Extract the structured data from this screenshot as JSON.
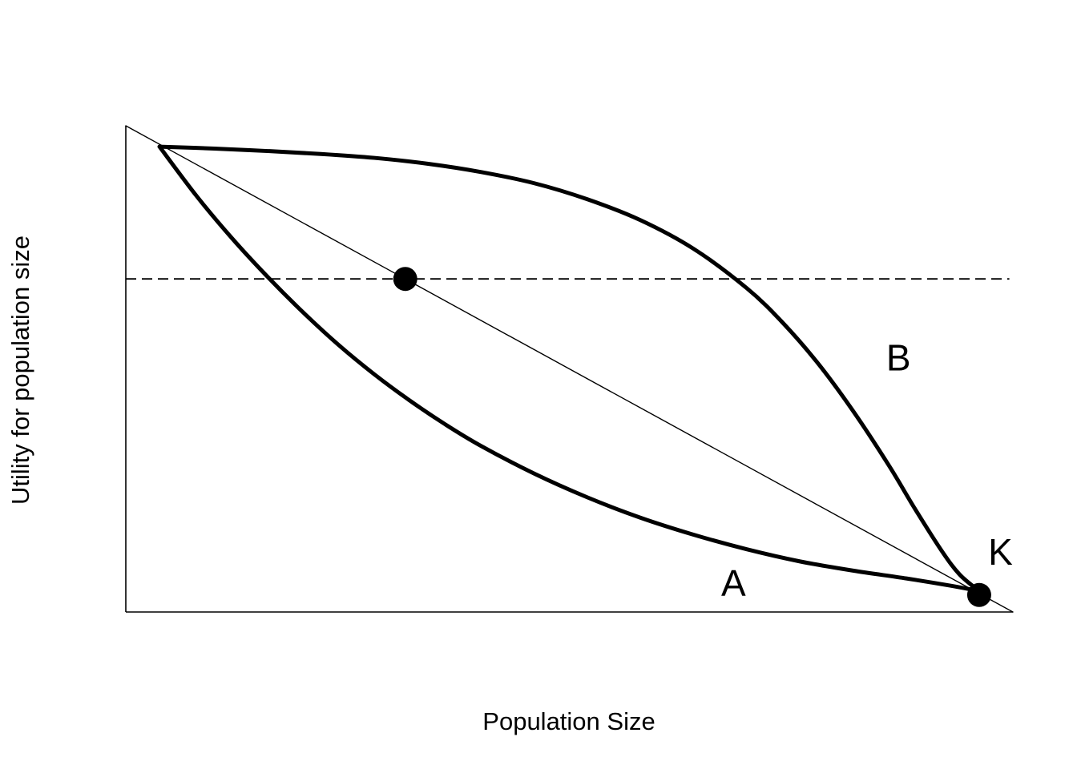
{
  "chart_data": {
    "type": "line",
    "title": "",
    "xlabel": "Population Size",
    "ylabel": "Utility for population size",
    "xlim": [
      0,
      100
    ],
    "ylim": [
      0,
      100
    ],
    "grid": false,
    "legend": "none",
    "ticks": "none",
    "colors": {
      "line": "#000000",
      "background": "#ffffff"
    },
    "series": [
      {
        "label": "A",
        "style": "thick",
        "x": [
          3.8,
          8,
          12,
          16,
          20,
          24,
          28,
          32,
          36,
          40,
          46,
          52,
          58,
          64,
          70,
          76,
          82,
          88,
          93,
          96.2
        ],
        "y": [
          95.7,
          85.5,
          76.8,
          68.9,
          61.6,
          54.9,
          48.9,
          43.5,
          38.6,
          34.2,
          28.5,
          23.6,
          19.4,
          15.9,
          12.9,
          10.4,
          8.5,
          6.9,
          5.4,
          4.3
        ]
      },
      {
        "label": "B",
        "style": "thick",
        "x": [
          3.8,
          10,
          16,
          22,
          28,
          34,
          40,
          46,
          52,
          58,
          64,
          70,
          74,
          78,
          82,
          86,
          89,
          92,
          94,
          96.2
        ],
        "y": [
          95.7,
          95.3,
          94.8,
          94.2,
          93.4,
          92.2,
          90.5,
          88.2,
          84.9,
          80.6,
          74.7,
          66.6,
          59.6,
          51.2,
          41.3,
          30.2,
          21.1,
          12.5,
          7.7,
          4.3
        ]
      },
      {
        "label": "",
        "style": "thin",
        "x": [
          0,
          100
        ],
        "y": [
          100,
          0
        ]
      },
      {
        "label": "",
        "style": "dashed",
        "x": [
          0,
          99.6
        ],
        "y": [
          68.5,
          68.5
        ]
      }
    ],
    "points": [
      {
        "x": 31.5,
        "y": 68.5
      },
      {
        "x": 96.2,
        "y": 3.5,
        "label": "K"
      }
    ],
    "annotations": [
      {
        "text": "A",
        "x": 68.5,
        "y": 3.3
      },
      {
        "text": "B",
        "x": 87.1,
        "y": 49.7
      },
      {
        "text": "K",
        "x": 98.6,
        "y": 9.7
      }
    ]
  }
}
